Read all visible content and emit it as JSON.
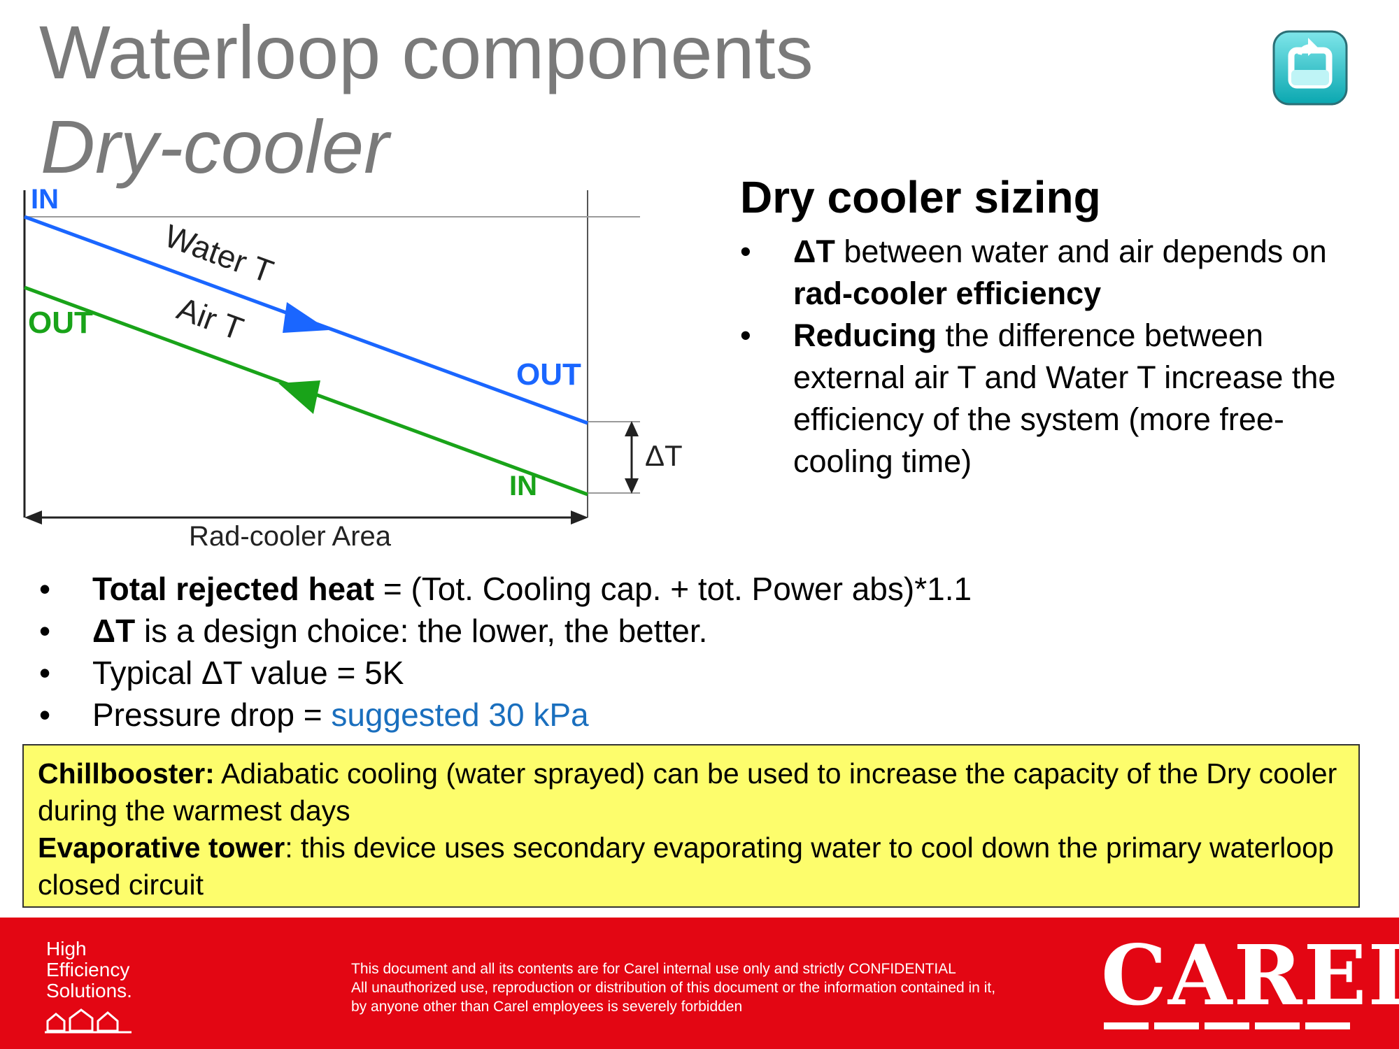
{
  "slide": {
    "title_line1": "Waterloop components",
    "title_line2": "Dry-cooler"
  },
  "diagram": {
    "in_top": "IN",
    "out_left": "OUT",
    "water_label": "Water T",
    "air_label": "Air T",
    "out_right": "OUT",
    "in_bottom": "IN",
    "delta": "ΔT",
    "area_label": "Rad-cooler Area",
    "colors": {
      "water": "#1a66ff",
      "air": "#19a319"
    }
  },
  "sizing": {
    "heading": "Dry cooler sizing",
    "b1": {
      "bold": "ΔT",
      "text": " between water and air depends on ",
      "bold2": "rad-cooler efficiency"
    },
    "b2": {
      "bold": "Reducing",
      "text": " the difference between external air T and Water T increase the efficiency of the system (more free-cooling time)"
    }
  },
  "list": {
    "i1": {
      "bold": "Total rejected heat",
      "text": " = (Tot. Cooling cap. + tot. Power abs)*1.1"
    },
    "i2": {
      "bold": "ΔT",
      "text": " is a design choice: the lower, the better."
    },
    "i3": {
      "text": "Typical ΔT value = 5K"
    },
    "i4": {
      "text": "Pressure drop = ",
      "blue": "suggested 30 kPa"
    }
  },
  "note": {
    "p1_bold": "Chillbooster:",
    "p1_text": " Adiabatic cooling (water sprayed) can be used to increase the capacity of the Dry cooler during the warmest days",
    "p2_bold": "Evaporative tower",
    "p2_text": ": this device uses secondary evaporating water to cool down the primary waterloop closed circuit"
  },
  "footer": {
    "hes1": "High",
    "hes2": "Efficiency",
    "hes3": "Solutions.",
    "conf1": "This document and all its contents are for Carel internal use only and strictly  CONFIDENTIAL",
    "conf2": "All unauthorized use, reproduction or distribution of this document or the information contained in it,",
    "conf3": "by anyone other than Carel employees is severely forbidden",
    "brand": "CAREL"
  },
  "icons": {
    "back": "return-arrow-icon"
  }
}
